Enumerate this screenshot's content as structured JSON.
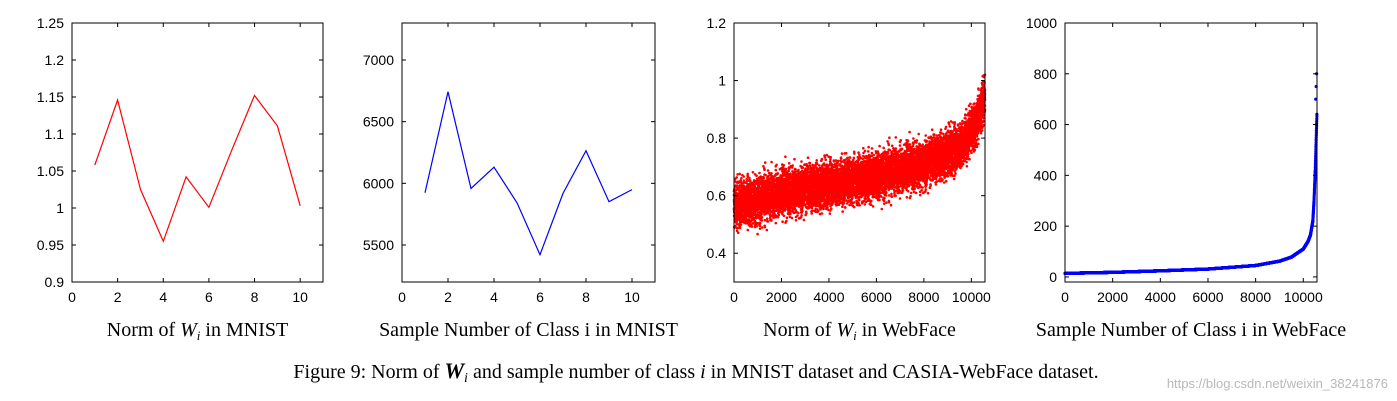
{
  "caption": {
    "prefix": "Figure 9: Norm of ",
    "w_symbol": "W",
    "w_sub": "i",
    "middle": " and sample number of class ",
    "i_symbol": "i",
    "suffix": " in MNIST dataset and CASIA-WebFace dataset."
  },
  "watermark": "https://blog.csdn.net/weixin_38241876",
  "colors": {
    "red_series": "#ff0000",
    "blue_series": "#0000ff"
  },
  "chart_data": [
    {
      "type": "line",
      "xlabel": "Norm of Wi in MNIST",
      "xlabel_parts": {
        "pre": "Norm of ",
        "sym": "W",
        "sub": "i",
        "post": "  in MNIST"
      },
      "ylabel": "",
      "xlim": [
        0,
        11
      ],
      "ylim": [
        0.9,
        1.25
      ],
      "xticks": [
        0,
        2,
        4,
        6,
        8,
        10
      ],
      "yticks": [
        0.9,
        0.95,
        1,
        1.05,
        1.1,
        1.15,
        1.2,
        1.25
      ],
      "ytick_labels": [
        "0.9",
        "0.95",
        "1",
        "1.05",
        "1.1",
        "1.15",
        "1.2",
        "1.25"
      ],
      "color": "#ff0000",
      "grid": false,
      "x": [
        1,
        2,
        3,
        4,
        5,
        6,
        7,
        8,
        9,
        10
      ],
      "y": [
        1.058,
        1.146,
        1.025,
        0.955,
        1.042,
        1.001,
        1.078,
        1.152,
        1.111,
        1.003
      ]
    },
    {
      "type": "line",
      "xlabel": "Sample Number of Class i in MNIST",
      "ylabel": "",
      "xlim": [
        0,
        11
      ],
      "ylim": [
        5200,
        7300
      ],
      "xticks": [
        0,
        2,
        4,
        6,
        8,
        10
      ],
      "yticks": [
        5500,
        6000,
        6500,
        7000
      ],
      "ytick_labels": [
        "5500",
        "6000",
        "6500",
        "7000"
      ],
      "color": "#0000ff",
      "grid": false,
      "x": [
        1,
        2,
        3,
        4,
        5,
        6,
        7,
        8,
        9,
        10
      ],
      "y": [
        5923,
        6742,
        5958,
        6131,
        5842,
        5421,
        5918,
        6265,
        5851,
        5949
      ]
    },
    {
      "type": "scatter",
      "xlabel": "Norm of Wi in WebFace",
      "xlabel_parts": {
        "pre": "Norm of ",
        "sym": "W",
        "sub": "i",
        "post": "  in WebFace"
      },
      "ylabel": "",
      "xlim": [
        0,
        10575
      ],
      "ylim": [
        0.3,
        1.2
      ],
      "xticks": [
        0,
        2000,
        4000,
        6000,
        8000,
        10000
      ],
      "yticks": [
        0.4,
        0.6,
        0.8,
        1,
        1.2
      ],
      "ytick_labels": [
        "0.4",
        "0.6",
        "0.8",
        "1",
        "1.2"
      ],
      "color": "#ff0000",
      "grid": false,
      "n_points": 10575,
      "trend_x": [
        0,
        2000,
        4000,
        6000,
        8000,
        9500,
        10200,
        10575
      ],
      "trend_y": [
        0.565,
        0.61,
        0.64,
        0.67,
        0.71,
        0.77,
        0.85,
        0.95
      ],
      "spread": 0.12
    },
    {
      "type": "scatter",
      "xlabel": "Sample Number of Class i in WebFace",
      "ylabel": "",
      "xlim": [
        0,
        10575
      ],
      "ylim": [
        -20,
        1000
      ],
      "xticks": [
        0,
        2000,
        4000,
        6000,
        8000,
        10000
      ],
      "yticks": [
        0,
        200,
        400,
        600,
        800,
        1000
      ],
      "ytick_labels": [
        "0",
        "200",
        "400",
        "600",
        "800",
        "1000"
      ],
      "color": "#0000ff",
      "grid": false,
      "n_points": 10575,
      "curve_x": [
        0,
        2000,
        4000,
        6000,
        8000,
        9000,
        9500,
        10000,
        10200,
        10300,
        10400,
        10450,
        10500,
        10575
      ],
      "curve_y": [
        14,
        18,
        24,
        31,
        45,
        62,
        78,
        110,
        140,
        165,
        220,
        300,
        420,
        650
      ],
      "outliers": [
        [
          10520,
          700
        ],
        [
          10540,
          750
        ],
        [
          10560,
          800
        ]
      ]
    }
  ]
}
